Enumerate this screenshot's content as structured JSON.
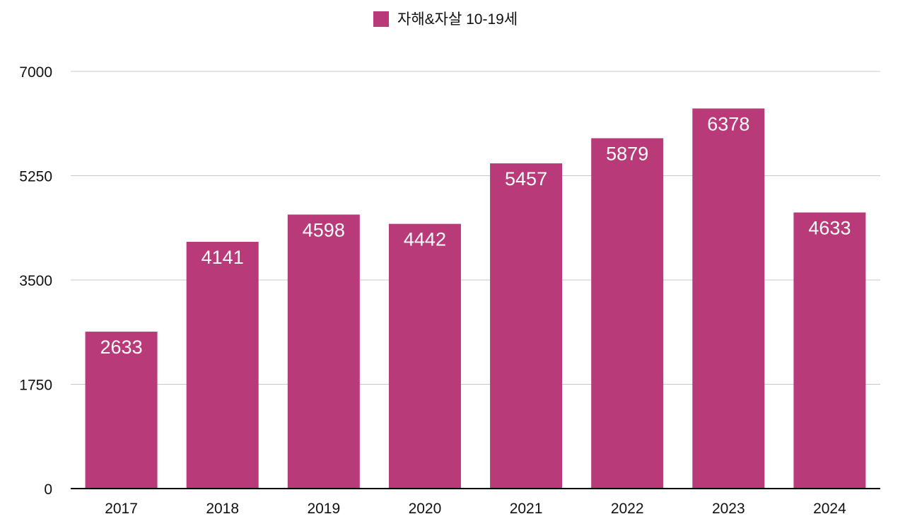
{
  "chart_data": {
    "type": "bar",
    "title": "",
    "xlabel": "",
    "ylabel": "",
    "categories": [
      "2017",
      "2018",
      "2019",
      "2020",
      "2021",
      "2022",
      "2023",
      "2024"
    ],
    "series": [
      {
        "name": "자해&자살 10-19세",
        "values": [
          2633,
          4141,
          4598,
          4442,
          5457,
          5879,
          6378,
          4633
        ],
        "color": "#b93a78"
      }
    ],
    "ylim": [
      0,
      7000
    ],
    "yticks": [
      0,
      1750,
      3500,
      5250,
      7000
    ],
    "grid": true,
    "legend_position": "top-center",
    "data_labels": true
  }
}
